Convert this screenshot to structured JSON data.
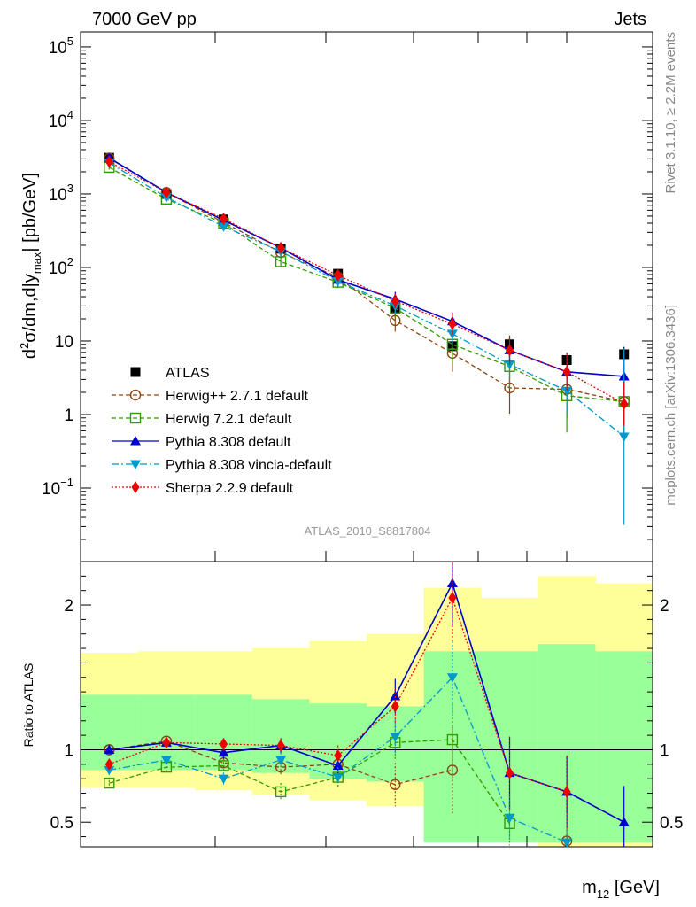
{
  "header": {
    "left": "7000 GeV pp",
    "right": "Jets"
  },
  "side_labels": {
    "rivet": "Rivet 3.1.10, ≥ 2.2M events",
    "mcplots": "mcplots.cern.ch [arXiv:1306.3436]"
  },
  "watermark": "ATLAS_2010_S8817804",
  "colors": {
    "band_outer": "#ffff99",
    "band_inner": "#99ff99",
    "atlas": "#000000",
    "herwigpp": "#8b4513",
    "herwig7": "#339900",
    "pythia": "#0000cc",
    "vincia": "#0099cc",
    "sherpa": "#ee0000"
  },
  "chart_data": [
    {
      "type": "scatter",
      "panel": "main",
      "ylabel_parts": {
        "d": "d",
        "sup": "2",
        "mid": "σ/dm,d|y",
        "sub": "max",
        "end": "| [pb/GeV]"
      },
      "yscale": "log",
      "ylim": [
        0.01,
        160000
      ],
      "x_index": [
        1,
        2,
        3,
        4,
        5,
        6,
        7,
        8,
        9,
        10
      ],
      "y_ticks": [
        {
          "base": "10",
          "exp": "5"
        },
        {
          "base": "10",
          "exp": "4"
        },
        {
          "base": "10",
          "exp": "3"
        },
        {
          "base": "10",
          "exp": "2"
        },
        {
          "base": "10",
          "exp": ""
        },
        {
          "base": "1",
          "exp": ""
        },
        {
          "base": "10",
          "exp": "−1"
        }
      ],
      "legend_position": "lower-left",
      "series": [
        {
          "key": "atlas",
          "name": "ATLAS",
          "marker": "square-filled",
          "line": "none",
          "values": [
            3100,
            1000,
            450,
            180,
            82,
            27,
            8.5,
            9.0,
            5.5,
            6.6
          ],
          "err": [
            0.04,
            0.04,
            0.04,
            0.04,
            0.05,
            0.06,
            0.08,
            0.1,
            0.1,
            0.1
          ]
        },
        {
          "key": "herwigpp",
          "name": "Herwig++ 2.7.1 default",
          "marker": "circle-open",
          "line": "dashed",
          "values": [
            3050,
            1050,
            410,
            160,
            74,
            19,
            6.8,
            2.3,
            2.2,
            1.5
          ],
          "err": [
            0.03,
            0.04,
            0.05,
            0.06,
            0.08,
            0.15,
            0.25,
            0.35,
            0.4,
            0.5
          ]
        },
        {
          "key": "herwig7",
          "name": "Herwig 7.2.1 default",
          "marker": "square-open",
          "line": "dashed",
          "values": [
            2300,
            850,
            400,
            120,
            63,
            28,
            9.0,
            4.5,
            1.8,
            1.5
          ],
          "err": [
            0.03,
            0.04,
            0.05,
            0.06,
            0.08,
            0.12,
            0.25,
            0.3,
            0.5,
            0.5
          ]
        },
        {
          "key": "pythia",
          "name": "Pythia 8.308 default",
          "marker": "triangle-up",
          "line": "solid",
          "values": [
            3100,
            1050,
            440,
            185,
            68,
            37,
            18.5,
            7.5,
            3.8,
            3.3
          ],
          "err": [
            0.03,
            0.04,
            0.05,
            0.06,
            0.08,
            0.1,
            0.12,
            0.15,
            0.2,
            0.3
          ]
        },
        {
          "key": "vincia",
          "name": "Pythia 8.308 vincia-default",
          "marker": "triangle-down",
          "line": "dashdot",
          "values": [
            2650,
            900,
            360,
            165,
            65,
            30,
            12.5,
            4.8,
            2.1,
            0.5
          ],
          "err": [
            0.03,
            0.04,
            0.05,
            0.06,
            0.08,
            0.1,
            0.15,
            0.2,
            0.3,
            1.2
          ]
        },
        {
          "key": "sherpa",
          "name": "Sherpa 2.2.9 default",
          "marker": "diamond",
          "line": "dotted",
          "values": [
            2750,
            1050,
            460,
            185,
            78,
            35,
            17,
            7.5,
            3.8,
            1.4
          ],
          "err": [
            0.03,
            0.04,
            0.05,
            0.06,
            0.08,
            0.1,
            0.15,
            0.2,
            0.25,
            0.3
          ]
        }
      ]
    },
    {
      "type": "scatter",
      "panel": "ratio",
      "ylabel": "Ratio to ATLAS",
      "xlabel_parts": {
        "m": "m",
        "sub": "12",
        "unit": " [GeV]"
      },
      "ylim": [
        0.33,
        2.3
      ],
      "y_ticks": [
        "2",
        "1",
        "0.5"
      ],
      "reference_line": 1,
      "bands": {
        "outer_upper": [
          1.67,
          1.68,
          1.68,
          1.7,
          1.75,
          1.8,
          2.12,
          2.05,
          2.2,
          2.15
        ],
        "outer_lower": [
          0.74,
          0.74,
          0.72,
          0.69,
          0.65,
          0.61,
          0.43,
          0.43,
          0.33,
          0.33
        ],
        "inner_upper": [
          1.38,
          1.38,
          1.38,
          1.35,
          1.32,
          1.3,
          1.68,
          1.68,
          1.73,
          1.68
        ],
        "inner_lower": [
          0.86,
          0.86,
          0.86,
          0.84,
          0.8,
          0.78,
          0.36,
          0.36,
          0.36,
          0.36
        ]
      },
      "series": [
        {
          "key": "herwigpp",
          "values": [
            1.0,
            1.06,
            0.91,
            0.88,
            0.9,
            0.76,
            0.86,
            null,
            0.37,
            null
          ],
          "err": [
            0.02,
            0.03,
            0.05,
            0.06,
            0.07,
            0.15,
            0.3,
            null,
            0.3,
            null
          ]
        },
        {
          "key": "herwig7",
          "values": [
            0.77,
            0.88,
            0.89,
            0.71,
            0.81,
            1.05,
            1.07,
            0.49,
            null,
            null
          ],
          "err": [
            0.02,
            0.03,
            0.05,
            0.06,
            0.07,
            0.12,
            0.25,
            0.15,
            null,
            null
          ]
        },
        {
          "key": "pythia",
          "values": [
            1.0,
            1.05,
            0.98,
            1.03,
            0.89,
            1.37,
            2.15,
            0.84,
            0.71,
            0.5
          ],
          "err": [
            0.02,
            0.03,
            0.04,
            0.05,
            0.07,
            0.12,
            0.3,
            0.25,
            0.25,
            0.25
          ]
        },
        {
          "key": "vincia",
          "values": [
            0.86,
            0.93,
            0.8,
            0.93,
            0.81,
            1.09,
            1.5,
            0.53,
            0.36,
            null
          ],
          "err": [
            0.02,
            0.03,
            0.04,
            0.05,
            0.07,
            0.12,
            0.25,
            0.15,
            0.2,
            null
          ]
        },
        {
          "key": "sherpa",
          "values": [
            0.9,
            1.05,
            1.04,
            1.03,
            0.96,
            1.3,
            2.05,
            0.84,
            0.71,
            null
          ],
          "err": [
            0.02,
            0.03,
            0.04,
            0.05,
            0.07,
            0.12,
            0.3,
            0.25,
            0.25,
            null
          ]
        }
      ]
    }
  ]
}
